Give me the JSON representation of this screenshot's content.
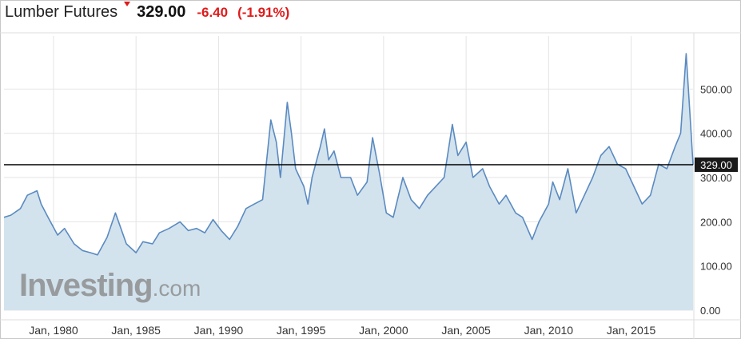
{
  "header": {
    "title": "Lumber Futures",
    "direction_icon": "down-arrow-icon",
    "price": "329.00",
    "change": "-6.40",
    "change_pct": "(-1.91%)"
  },
  "watermark": {
    "brand": "Investing",
    "suffix": ".com"
  },
  "colors": {
    "line": "#5b8ac0",
    "fill": "#d2e3ee",
    "negative": "#e01a1a",
    "grid": "#e4e4e4",
    "current_line": "#000000"
  },
  "chart_data": {
    "type": "area",
    "title": "Lumber Futures",
    "ylim": [
      0,
      620
    ],
    "y_ticks": [
      "0.00",
      "100.00",
      "200.00",
      "300.00",
      "400.00",
      "500.00"
    ],
    "x_ticks": [
      "Jan, 1980",
      "Jan, 1985",
      "Jan, 1990",
      "Jan, 1995",
      "Jan, 2000",
      "Jan, 2005",
      "Jan, 2010",
      "Jan, 2015"
    ],
    "grid": true,
    "current_value": 329.0,
    "current_label": "329.00",
    "series": [
      {
        "x": [
          "1977-01",
          "1977-06",
          "1978-01",
          "1978-06",
          "1979-01",
          "1979-04",
          "1979-09",
          "1980-04",
          "1980-09",
          "1981-04",
          "1981-10",
          "1982-04",
          "1982-09",
          "1983-04",
          "1983-10",
          "1984-06",
          "1985-01",
          "1985-06",
          "1986-01",
          "1986-06",
          "1987-01",
          "1987-09",
          "1988-03",
          "1988-09",
          "1989-03",
          "1989-09",
          "1990-03",
          "1990-09",
          "1991-03",
          "1991-09",
          "1992-03",
          "1992-09",
          "1993-03",
          "1993-07",
          "1993-10",
          "1994-03",
          "1994-06",
          "1994-09",
          "1995-03",
          "1995-06",
          "1995-09",
          "1996-03",
          "1996-06",
          "1996-09",
          "1997-01",
          "1997-06",
          "1998-01",
          "1998-06",
          "1999-01",
          "1999-05",
          "1999-10",
          "2000-03",
          "2000-08",
          "2001-03",
          "2001-09",
          "2002-03",
          "2002-09",
          "2003-03",
          "2003-09",
          "2004-03",
          "2004-07",
          "2005-01",
          "2005-06",
          "2006-01",
          "2006-06",
          "2007-01",
          "2007-06",
          "2008-01",
          "2008-06",
          "2009-01",
          "2009-06",
          "2010-01",
          "2010-04",
          "2010-09",
          "2011-03",
          "2011-09",
          "2012-03",
          "2012-09",
          "2013-03",
          "2013-09",
          "2014-03",
          "2014-09",
          "2015-03",
          "2015-09",
          "2016-03",
          "2016-09",
          "2017-03",
          "2017-09",
          "2018-01",
          "2018-05",
          "2018-08",
          "2018-10"
        ],
        "y": [
          210,
          215,
          230,
          260,
          270,
          240,
          210,
          170,
          185,
          150,
          135,
          130,
          125,
          165,
          220,
          150,
          130,
          155,
          150,
          175,
          185,
          200,
          180,
          185,
          175,
          205,
          180,
          160,
          190,
          230,
          240,
          250,
          430,
          380,
          300,
          470,
          400,
          320,
          280,
          240,
          300,
          370,
          410,
          340,
          360,
          300,
          300,
          260,
          290,
          390,
          310,
          220,
          210,
          300,
          250,
          230,
          260,
          280,
          300,
          420,
          350,
          380,
          300,
          320,
          280,
          240,
          260,
          220,
          210,
          160,
          200,
          240,
          290,
          250,
          320,
          220,
          260,
          300,
          350,
          370,
          330,
          320,
          280,
          240,
          260,
          330,
          320,
          370,
          400,
          580,
          430,
          329
        ]
      }
    ]
  }
}
